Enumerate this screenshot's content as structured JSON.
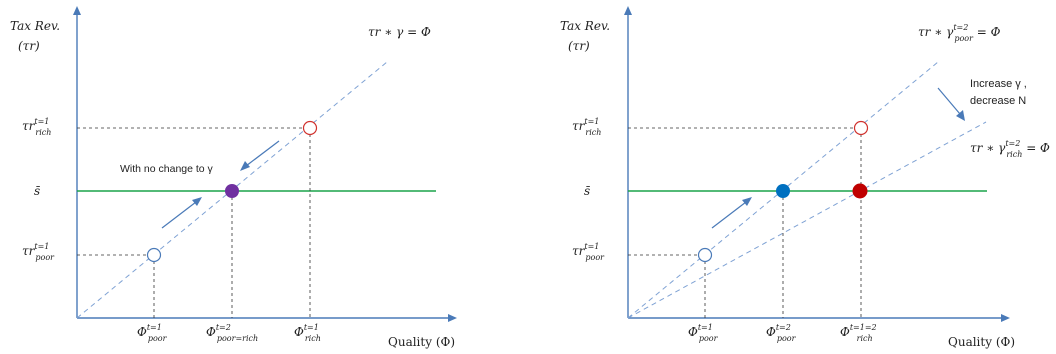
{
  "chart_data": [
    {
      "type": "line",
      "ylabel_line1": "Tax Rev.",
      "ylabel_line2": "(τr)",
      "xlabel": "Quality (Φ)",
      "equations": [
        {
          "base": "τr ∗ γ = Φ",
          "sup": "",
          "sub": "",
          "tail": ""
        }
      ],
      "y_ticks": [
        {
          "base": "τr",
          "sup": "t=1",
          "sub": "rich"
        },
        {
          "base": "s̄",
          "sup": "",
          "sub": ""
        },
        {
          "base": "τr",
          "sup": "t=1",
          "sub": "poor"
        }
      ],
      "x_ticks": [
        {
          "base": "Φ",
          "sup": "t=1",
          "sub": "poor"
        },
        {
          "base": "Φ",
          "sup": "t=2",
          "sub": "poor=rich"
        },
        {
          "base": "Φ",
          "sup": "t=1",
          "sub": "rich"
        }
      ],
      "annotations": [
        "With no change to γ"
      ],
      "points": [
        {
          "name": "poor-t1",
          "state": "hollow",
          "color": "#4a7ab8"
        },
        {
          "name": "equal-t2",
          "state": "filled",
          "color": "#7030a0"
        },
        {
          "name": "rich-t1",
          "state": "hollow",
          "color": "#d0312d"
        }
      ]
    },
    {
      "type": "line",
      "ylabel_line1": "Tax Rev.",
      "ylabel_line2": "(τr)",
      "xlabel": "Quality (Φ)",
      "equations": [
        {
          "base": "τr ∗ γ",
          "sup": "t=2",
          "sub": "poor",
          "tail": " = Φ"
        },
        {
          "base": "τr ∗ γ",
          "sup": "t=2",
          "sub": "rich",
          "tail": " = Φ"
        }
      ],
      "y_ticks": [
        {
          "base": "τr",
          "sup": "t=1",
          "sub": "rich"
        },
        {
          "base": "s̄",
          "sup": "",
          "sub": ""
        },
        {
          "base": "τr",
          "sup": "t=1",
          "sub": "poor"
        }
      ],
      "x_ticks": [
        {
          "base": "Φ",
          "sup": "t=1",
          "sub": "poor"
        },
        {
          "base": "Φ",
          "sup": "t=2",
          "sub": "poor"
        },
        {
          "base": "Φ",
          "sup": "t=1=2",
          "sub": "rich"
        }
      ],
      "annotations": [
        "Increase γ ,",
        "decrease N"
      ],
      "points": [
        {
          "name": "poor-t1",
          "state": "hollow",
          "color": "#4a7ab8"
        },
        {
          "name": "poor-t2",
          "state": "filled",
          "color": "#0070c0"
        },
        {
          "name": "rich-t1",
          "state": "hollow",
          "color": "#d0312d"
        },
        {
          "name": "rich-t2",
          "state": "filled",
          "color": "#c00000"
        }
      ]
    }
  ]
}
